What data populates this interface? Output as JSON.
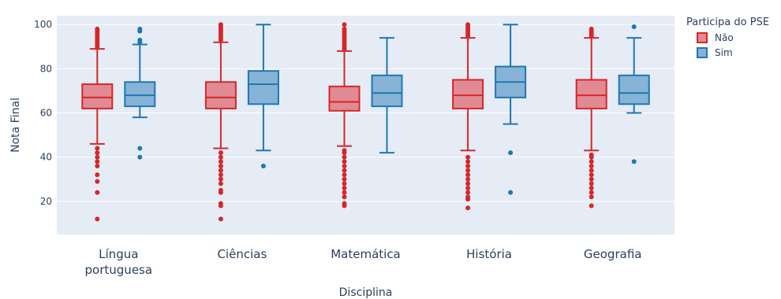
{
  "chart_data": {
    "type": "box",
    "xlabel": "Disciplina",
    "ylabel": "Nota Final",
    "ylim": [
      5,
      104
    ],
    "yticks": [
      20,
      40,
      60,
      80,
      100
    ],
    "grid": true,
    "legend_title": "Participa do PSE",
    "legend_position": "top-right",
    "categories": [
      [
        "Língua",
        "portuguesa"
      ],
      [
        "Ciências"
      ],
      [
        "Matemática"
      ],
      [
        "História"
      ],
      [
        "Geografia"
      ]
    ],
    "series": [
      {
        "name": "Não",
        "fill": "#e28a94",
        "stroke": "#d62728",
        "boxes": [
          {
            "min": 46,
            "q1": 62,
            "median": 67,
            "q3": 73,
            "max": 89,
            "outliers": [
              12,
              24,
              29,
              32,
              36,
              38,
              40,
              42,
              44,
              90,
              91,
              92,
              93,
              94,
              95,
              96,
              97,
              98
            ]
          },
          {
            "min": 44,
            "q1": 62,
            "median": 67,
            "q3": 74,
            "max": 92,
            "outliers": [
              12,
              18,
              19,
              24,
              25,
              28,
              30,
              32,
              34,
              36,
              38,
              40,
              42,
              93,
              94,
              95,
              96,
              97,
              98,
              99,
              100
            ]
          },
          {
            "min": 45,
            "q1": 61,
            "median": 65,
            "q3": 72,
            "max": 88,
            "outliers": [
              18,
              19,
              22,
              24,
              26,
              28,
              30,
              32,
              34,
              36,
              38,
              40,
              42,
              43,
              89,
              90,
              91,
              92,
              93,
              94,
              95,
              96,
              97,
              98,
              100
            ]
          },
          {
            "min": 43,
            "q1": 62,
            "median": 68,
            "q3": 75,
            "max": 94,
            "outliers": [
              17,
              21,
              22,
              24,
              26,
              28,
              30,
              32,
              34,
              36,
              38,
              40,
              95,
              96,
              97,
              98,
              99,
              100
            ]
          },
          {
            "min": 43,
            "q1": 62,
            "median": 68,
            "q3": 75,
            "max": 94,
            "outliers": [
              18,
              22,
              24,
              26,
              28,
              30,
              32,
              34,
              36,
              38,
              40,
              41,
              95,
              96,
              97,
              98
            ]
          }
        ]
      },
      {
        "name": "Sim",
        "fill": "#86b3d6",
        "stroke": "#1f77b4",
        "boxes": [
          {
            "min": 58,
            "q1": 63,
            "median": 68,
            "q3": 74,
            "max": 91,
            "outliers": [
              40,
              44,
              92,
              93,
              97,
              98
            ]
          },
          {
            "min": 43,
            "q1": 64,
            "median": 73,
            "q3": 79,
            "max": 100,
            "outliers": [
              36
            ]
          },
          {
            "min": 42,
            "q1": 63,
            "median": 69,
            "q3": 77,
            "max": 94,
            "outliers": []
          },
          {
            "min": 55,
            "q1": 67,
            "median": 74,
            "q3": 81,
            "max": 100,
            "outliers": [
              24,
              42
            ]
          },
          {
            "min": 60,
            "q1": 64,
            "median": 69,
            "q3": 77,
            "max": 94,
            "outliers": [
              38,
              99
            ]
          }
        ]
      }
    ]
  }
}
